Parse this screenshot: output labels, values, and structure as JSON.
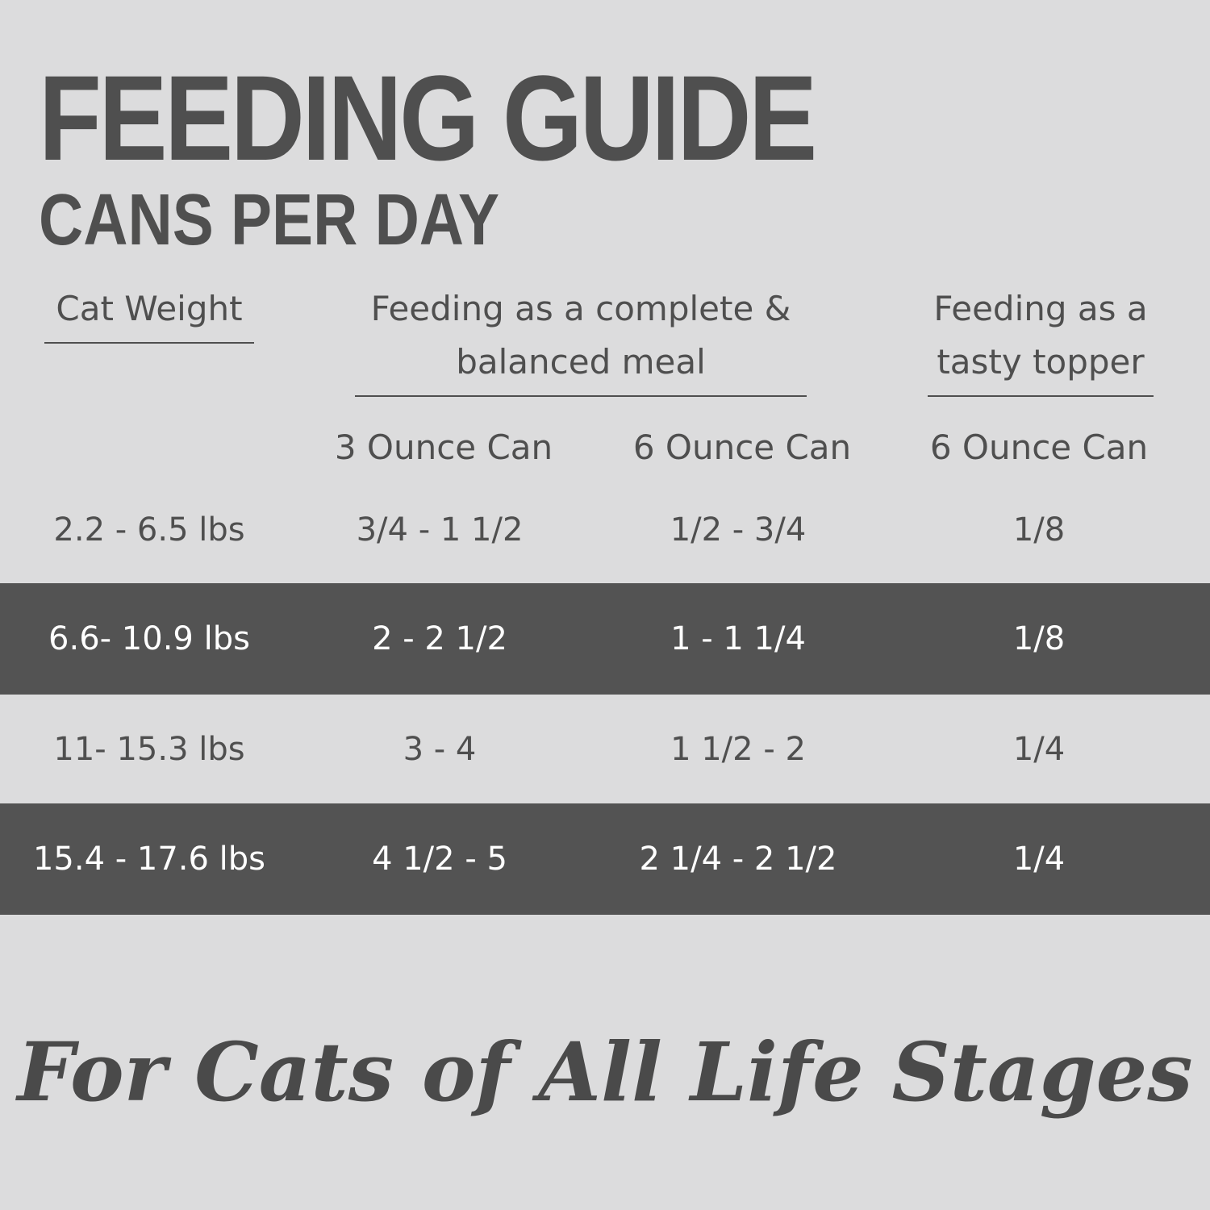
{
  "header": {
    "title": "FEEDING GUIDE",
    "subtitle": "CANS PER DAY"
  },
  "table": {
    "group_headers": [
      "Cat Weight",
      "Feeding as a complete & balanced meal",
      "Feeding as a tasty topper"
    ],
    "sub_headers": [
      "3 Ounce Can",
      "6 Ounce Can",
      "6 Ounce Can"
    ],
    "rows": [
      [
        "2.2 - 6.5 lbs",
        "3/4 - 1 1/2",
        "1/2 - 3/4",
        "1/8"
      ],
      [
        "6.6- 10.9 lbs",
        "2 - 2 1/2",
        "1 - 1 1/4",
        "1/8"
      ],
      [
        "11- 15.3 lbs",
        "3 - 4",
        "1 1/2 - 2",
        "1/4"
      ],
      [
        "15.4 - 17.6 lbs",
        "4 1/2 - 5",
        "2 1/4 - 2 1/2",
        "1/4"
      ]
    ]
  },
  "footer": {
    "tagline": "For Cats of All Life Stages"
  }
}
